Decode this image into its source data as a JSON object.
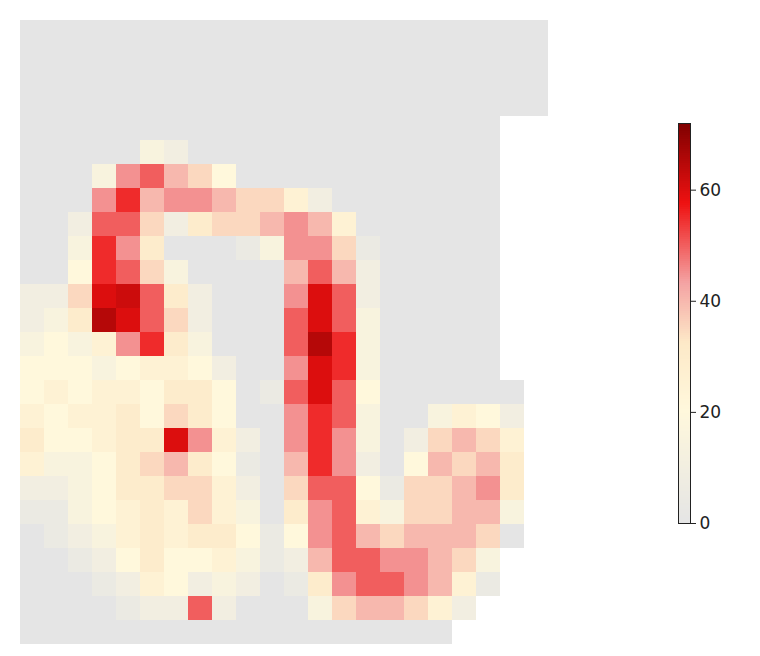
{
  "chart_data": {
    "type": "heatmap",
    "tick_labels": false,
    "cells": [
      [
        0,
        0,
        0,
        0,
        0,
        0,
        0,
        0,
        0,
        0,
        0,
        0,
        0,
        0,
        0,
        0,
        0,
        0,
        0,
        0,
        0,
        0,
        null
      ],
      [
        0,
        0,
        0,
        0,
        0,
        0,
        0,
        0,
        0,
        0,
        0,
        0,
        0,
        0,
        0,
        0,
        0,
        0,
        0,
        0,
        0,
        0,
        null
      ],
      [
        0,
        0,
        0,
        0,
        0,
        0,
        0,
        0,
        0,
        0,
        0,
        0,
        0,
        0,
        0,
        0,
        0,
        0,
        0,
        0,
        0,
        0,
        null
      ],
      [
        0,
        0,
        0,
        0,
        0,
        0,
        0,
        0,
        0,
        0,
        0,
        0,
        0,
        0,
        0,
        0,
        0,
        0,
        0,
        0,
        0,
        0,
        null
      ],
      [
        0,
        0,
        0,
        0,
        0,
        0,
        0,
        0,
        0,
        0,
        0,
        0,
        0,
        0,
        0,
        0,
        0,
        0,
        0,
        0,
        null,
        null,
        null
      ],
      [
        0,
        0,
        0,
        0,
        0,
        15,
        10,
        0,
        0,
        0,
        0,
        0,
        0,
        0,
        0,
        0,
        0,
        0,
        0,
        0,
        null,
        null,
        null
      ],
      [
        0,
        0,
        0,
        15,
        45,
        50,
        40,
        35,
        20,
        0,
        0,
        0,
        0,
        0,
        0,
        0,
        0,
        0,
        0,
        0,
        null,
        null,
        null
      ],
      [
        0,
        0,
        0,
        45,
        55,
        40,
        45,
        45,
        40,
        35,
        35,
        25,
        10,
        0,
        0,
        0,
        0,
        0,
        0,
        0,
        null,
        null,
        null
      ],
      [
        0,
        0,
        10,
        50,
        50,
        35,
        10,
        30,
        35,
        35,
        40,
        45,
        40,
        25,
        0,
        0,
        0,
        0,
        0,
        0,
        null,
        null,
        null
      ],
      [
        0,
        0,
        15,
        55,
        45,
        30,
        0,
        0,
        0,
        5,
        15,
        45,
        45,
        35,
        5,
        0,
        0,
        0,
        0,
        0,
        null,
        null,
        null
      ],
      [
        0,
        0,
        20,
        55,
        50,
        35,
        15,
        0,
        0,
        0,
        0,
        40,
        50,
        40,
        10,
        0,
        0,
        0,
        0,
        0,
        null,
        null,
        null
      ],
      [
        10,
        10,
        35,
        60,
        62,
        50,
        30,
        10,
        0,
        0,
        0,
        45,
        60,
        50,
        10,
        0,
        0,
        0,
        0,
        0,
        null,
        null,
        null
      ],
      [
        10,
        15,
        30,
        65,
        60,
        50,
        35,
        10,
        0,
        0,
        0,
        50,
        60,
        50,
        15,
        0,
        0,
        0,
        0,
        0,
        null,
        null,
        null
      ],
      [
        15,
        20,
        15,
        25,
        45,
        55,
        30,
        15,
        0,
        0,
        0,
        50,
        65,
        55,
        15,
        0,
        0,
        0,
        0,
        0,
        null,
        null,
        null
      ],
      [
        20,
        20,
        20,
        15,
        20,
        25,
        25,
        20,
        10,
        0,
        0,
        45,
        60,
        55,
        15,
        0,
        0,
        0,
        0,
        0,
        null,
        null,
        null
      ],
      [
        20,
        25,
        20,
        25,
        25,
        20,
        30,
        30,
        20,
        0,
        5,
        50,
        60,
        50,
        20,
        0,
        0,
        0,
        0,
        0,
        0,
        null,
        null
      ],
      [
        25,
        20,
        25,
        25,
        30,
        20,
        35,
        30,
        20,
        0,
        0,
        45,
        55,
        50,
        15,
        0,
        0,
        15,
        25,
        20,
        10,
        null,
        null
      ],
      [
        30,
        20,
        20,
        25,
        30,
        30,
        60,
        45,
        25,
        10,
        0,
        45,
        55,
        45,
        15,
        0,
        10,
        35,
        40,
        35,
        25,
        null,
        null
      ],
      [
        25,
        15,
        15,
        20,
        30,
        35,
        40,
        30,
        20,
        5,
        0,
        40,
        55,
        45,
        10,
        0,
        20,
        40,
        35,
        40,
        30,
        null,
        null
      ],
      [
        10,
        10,
        15,
        20,
        30,
        30,
        35,
        35,
        25,
        10,
        0,
        35,
        50,
        50,
        20,
        5,
        35,
        35,
        40,
        45,
        30,
        null,
        null
      ],
      [
        5,
        5,
        15,
        20,
        25,
        30,
        25,
        35,
        25,
        15,
        0,
        30,
        45,
        50,
        25,
        15,
        35,
        35,
        40,
        40,
        15,
        null,
        null
      ],
      [
        0,
        5,
        10,
        15,
        25,
        30,
        25,
        30,
        30,
        20,
        5,
        20,
        45,
        50,
        40,
        35,
        40,
        40,
        40,
        35,
        0,
        null,
        null
      ],
      [
        0,
        0,
        5,
        10,
        20,
        30,
        20,
        20,
        25,
        15,
        5,
        10,
        40,
        50,
        50,
        45,
        45,
        40,
        35,
        15,
        null,
        null,
        null
      ],
      [
        0,
        0,
        0,
        5,
        10,
        25,
        20,
        10,
        15,
        10,
        0,
        5,
        30,
        45,
        50,
        50,
        45,
        40,
        25,
        5,
        null,
        null,
        null
      ],
      [
        0,
        0,
        0,
        0,
        5,
        10,
        10,
        50,
        10,
        0,
        0,
        0,
        15,
        35,
        40,
        40,
        35,
        25,
        10,
        null,
        null,
        null,
        null
      ],
      [
        0,
        0,
        0,
        0,
        0,
        0,
        0,
        0,
        0,
        0,
        0,
        0,
        0,
        0,
        0,
        0,
        0,
        0,
        null,
        null,
        null,
        null,
        null
      ]
    ],
    "colorbar": {
      "range": [
        0,
        72
      ],
      "ticks": [
        0,
        20,
        40,
        60
      ]
    }
  }
}
